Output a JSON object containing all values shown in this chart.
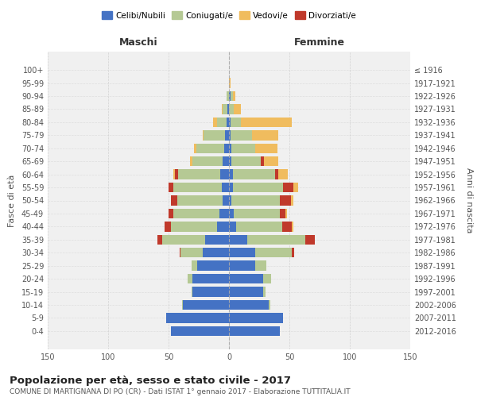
{
  "age_groups": [
    "0-4",
    "5-9",
    "10-14",
    "15-19",
    "20-24",
    "25-29",
    "30-34",
    "35-39",
    "40-44",
    "45-49",
    "50-54",
    "55-59",
    "60-64",
    "65-69",
    "70-74",
    "75-79",
    "80-84",
    "85-89",
    "90-94",
    "95-99",
    "100+"
  ],
  "birth_years": [
    "2012-2016",
    "2007-2011",
    "2002-2006",
    "1997-2001",
    "1992-1996",
    "1987-1991",
    "1982-1986",
    "1977-1981",
    "1972-1976",
    "1967-1971",
    "1962-1966",
    "1957-1961",
    "1952-1956",
    "1947-1951",
    "1942-1946",
    "1937-1941",
    "1932-1936",
    "1927-1931",
    "1922-1926",
    "1917-1921",
    "≤ 1916"
  ],
  "maschi": {
    "celibi": [
      48,
      52,
      38,
      30,
      30,
      26,
      22,
      20,
      10,
      8,
      5,
      6,
      7,
      5,
      4,
      3,
      2,
      1,
      0,
      0,
      0
    ],
    "coniugati": [
      0,
      0,
      1,
      1,
      4,
      5,
      18,
      35,
      38,
      38,
      38,
      40,
      35,
      25,
      23,
      18,
      8,
      4,
      2,
      0,
      0
    ],
    "vedovi": [
      0,
      0,
      0,
      0,
      0,
      0,
      0,
      0,
      0,
      0,
      0,
      0,
      1,
      2,
      2,
      1,
      3,
      1,
      0,
      0,
      0
    ],
    "divorziati": [
      0,
      0,
      0,
      0,
      0,
      0,
      1,
      4,
      5,
      4,
      5,
      4,
      3,
      0,
      0,
      0,
      0,
      0,
      0,
      0,
      0
    ]
  },
  "femmine": {
    "nubili": [
      42,
      45,
      33,
      28,
      28,
      22,
      22,
      15,
      6,
      4,
      2,
      3,
      3,
      2,
      2,
      1,
      1,
      0,
      1,
      0,
      0
    ],
    "coniugate": [
      0,
      0,
      1,
      2,
      7,
      9,
      30,
      48,
      38,
      38,
      40,
      42,
      35,
      24,
      20,
      18,
      9,
      4,
      2,
      0,
      0
    ],
    "vedove": [
      0,
      0,
      0,
      0,
      0,
      0,
      0,
      0,
      1,
      1,
      2,
      4,
      8,
      12,
      18,
      22,
      42,
      6,
      2,
      1,
      0
    ],
    "divorziate": [
      0,
      0,
      0,
      0,
      0,
      0,
      2,
      8,
      8,
      5,
      9,
      8,
      3,
      3,
      0,
      0,
      0,
      0,
      0,
      0,
      0
    ]
  },
  "colors": {
    "celibi": "#4472c4",
    "coniugati": "#b5c994",
    "vedovi": "#f0bc5e",
    "divorziati": "#c0392b"
  },
  "legend_labels": [
    "Celibi/Nubili",
    "Coniugati/e",
    "Vedovi/e",
    "Divorziati/e"
  ],
  "title": "Popolazione per età, sesso e stato civile - 2017",
  "subtitle": "COMUNE DI MARTIGNANA DI PO (CR) - Dati ISTAT 1° gennaio 2017 - Elaborazione TUTTITALIA.IT",
  "ylabel_left": "Fasce di età",
  "ylabel_right": "Anni di nascita",
  "xlabel_left": "Maschi",
  "xlabel_right": "Femmine",
  "xlim": 150,
  "background_color": "#ffffff",
  "grid_color": "#cccccc"
}
